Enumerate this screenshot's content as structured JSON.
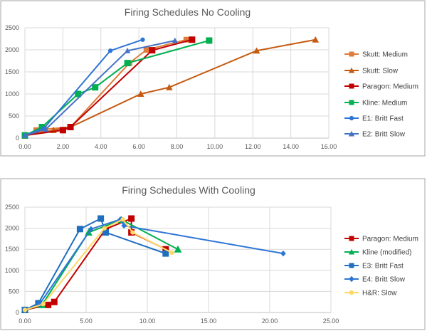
{
  "chart_data": [
    {
      "type": "line",
      "title": "Firing Schedules No Cooling",
      "xlim": [
        0,
        16
      ],
      "ylim": [
        0,
        2500
      ],
      "xticks": [
        "0.00",
        "2.00",
        "4.00",
        "6.00",
        "8.00",
        "10.00",
        "12.00",
        "14.00",
        "16.00"
      ],
      "yticks": [
        "0",
        "500",
        "1000",
        "1500",
        "2000",
        "2500"
      ],
      "grid": true,
      "legend": "right",
      "series": [
        {
          "name": "Skutt: Medium",
          "color": "#E07B39",
          "marker": "square",
          "points": [
            [
              0,
              60
            ],
            [
              0.6,
              180
            ],
            [
              1.0,
              200
            ],
            [
              2.4,
              250
            ],
            [
              5.5,
              1700
            ],
            [
              6.4,
              2000
            ],
            [
              8.5,
              2230
            ]
          ]
        },
        {
          "name": "Skutt: Slow",
          "color": "#C55A11",
          "marker": "triangle",
          "points": [
            [
              0,
              60
            ],
            [
              1.5,
              180
            ],
            [
              2.4,
              250
            ],
            [
              6.1,
              1000
            ],
            [
              7.6,
              1150
            ],
            [
              12.2,
              1980
            ],
            [
              15.3,
              2230
            ]
          ]
        },
        {
          "name": "Paragon: Medium",
          "color": "#C00000",
          "marker": "square",
          "points": [
            [
              0,
              60
            ],
            [
              2.0,
              180
            ],
            [
              2.4,
              250
            ],
            [
              6.7,
              1990
            ],
            [
              8.8,
              2230
            ]
          ]
        },
        {
          "name": "Kline: Medium",
          "color": "#00B050",
          "marker": "square",
          "points": [
            [
              0,
              60
            ],
            [
              0.9,
              250
            ],
            [
              2.8,
              1000
            ],
            [
              3.7,
              1150
            ],
            [
              5.4,
              1700
            ],
            [
              9.7,
              2210
            ]
          ]
        },
        {
          "name": "E1: Britt Fast",
          "color": "#2E75D6",
          "marker": "circle",
          "points": [
            [
              0,
              60
            ],
            [
              1.0,
              220
            ],
            [
              4.5,
              1980
            ],
            [
              6.2,
              2230
            ]
          ]
        },
        {
          "name": "E2: Britt Slow",
          "color": "#4472C4",
          "marker": "triangle",
          "points": [
            [
              0,
              60
            ],
            [
              1.1,
              200
            ],
            [
              5.4,
              1980
            ],
            [
              7.9,
              2210
            ]
          ]
        }
      ]
    },
    {
      "type": "line",
      "title": "Firing Schedules With Cooling",
      "xlim": [
        0,
        25
      ],
      "ylim": [
        0,
        2500
      ],
      "xticks": [
        "0.00",
        "5.00",
        "10.00",
        "15.00",
        "20.00",
        "25.00"
      ],
      "yticks": [
        "0",
        "500",
        "1000",
        "1500",
        "2000",
        "2500"
      ],
      "grid": true,
      "legend": "right",
      "series": [
        {
          "name": "Paragon: Medium",
          "color": "#C00000",
          "marker": "square",
          "points": [
            [
              0,
              60
            ],
            [
              1.9,
              180
            ],
            [
              2.4,
              250
            ],
            [
              6.6,
              1980
            ],
            [
              8.7,
              2230
            ],
            [
              8.7,
              1900
            ],
            [
              11.5,
              1500
            ]
          ]
        },
        {
          "name": "Kline (modified)",
          "color": "#00B050",
          "marker": "triangle",
          "points": [
            [
              0,
              60
            ],
            [
              1.4,
              180
            ],
            [
              5.2,
              1900
            ],
            [
              7.9,
              2200
            ],
            [
              12.5,
              1500
            ]
          ]
        },
        {
          "name": "E3: Britt Fast",
          "color": "#1F6FC0",
          "marker": "square",
          "points": [
            [
              0,
              60
            ],
            [
              1.1,
              220
            ],
            [
              4.5,
              1980
            ],
            [
              6.2,
              2230
            ],
            [
              6.6,
              1900
            ],
            [
              11.5,
              1400
            ]
          ]
        },
        {
          "name": "E4: Britt Slow",
          "color": "#2E75D6",
          "marker": "diamond",
          "points": [
            [
              0,
              60
            ],
            [
              1.2,
              200
            ],
            [
              5.4,
              1980
            ],
            [
              7.8,
              2210
            ],
            [
              8.1,
              2060
            ],
            [
              21.1,
              1400
            ]
          ]
        },
        {
          "name": "H&R: Slow",
          "color": "#FFD966",
          "marker": "circle",
          "points": [
            [
              0,
              60
            ],
            [
              1.5,
              200
            ],
            [
              6.5,
              2000
            ],
            [
              8.0,
              2210
            ],
            [
              8.8,
              1900
            ],
            [
              12.0,
              1420
            ]
          ]
        }
      ]
    }
  ]
}
